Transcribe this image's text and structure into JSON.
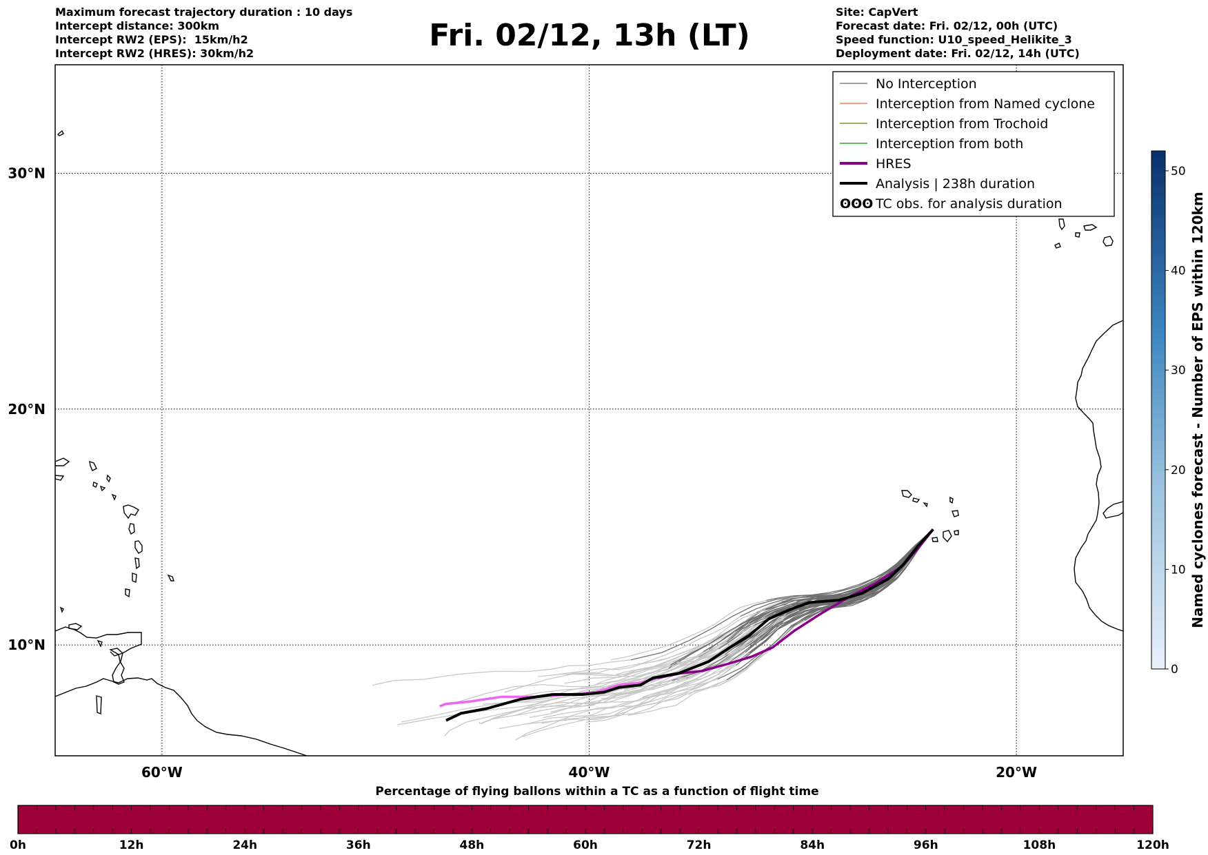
{
  "header": {
    "left": [
      "Maximum forecast trajectory duration : 10 days",
      "Intercept distance: 300km",
      "Intercept RW2 (EPS):  15km/h2",
      "Intercept RW2 (HRES): 30km/h2"
    ],
    "right": [
      "Site: CapVert",
      "Forecast date: Fri. 02/12, 00h (UTC)",
      "Speed function: U10_speed_Helikite_3",
      "Deployment date: Fri. 02/12, 14h (UTC)"
    ],
    "title": "Fri. 02/12, 13h (LT)"
  },
  "map": {
    "lon_range": [
      -65,
      -15
    ],
    "lat_range": [
      5.3,
      34.6
    ],
    "lon_ticks": [
      {
        "value": -60,
        "label": "60°W"
      },
      {
        "value": -40,
        "label": "40°W"
      },
      {
        "value": -20,
        "label": "20°W"
      }
    ],
    "lat_ticks": [
      {
        "value": 30,
        "label": "30°N"
      },
      {
        "value": 20,
        "label": "20°N"
      },
      {
        "value": 10,
        "label": "10°N"
      }
    ],
    "grid": true,
    "launch_site": {
      "lon": -23.9,
      "lat": 14.9
    }
  },
  "legend": {
    "position": "top-right",
    "items": [
      {
        "label": "No Interception",
        "color": "#7f7f7f",
        "style": "thin-line"
      },
      {
        "label": "Interception from Named cyclone",
        "color": "#ff7f50",
        "style": "thin-line"
      },
      {
        "label": "Interception from Trochoid",
        "color": "#8b8b2e",
        "style": "thin-line"
      },
      {
        "label": "Interception from both",
        "color": "#2ca02c",
        "style": "thin-line"
      },
      {
        "label": "HRES",
        "color": "#8b008b",
        "style": "thick-line"
      },
      {
        "label": "Analysis | 238h duration",
        "color": "#000000",
        "style": "thick-line"
      },
      {
        "label": "TC obs. for analysis duration",
        "color": "#000000",
        "style": "cyclone-symbols"
      }
    ]
  },
  "tracks": {
    "analysis": [
      [
        -23.9,
        14.9
      ],
      [
        -24.6,
        14.2
      ],
      [
        -25.3,
        13.4
      ],
      [
        -26.0,
        12.8
      ],
      [
        -27.2,
        12.2
      ],
      [
        -28.3,
        11.9
      ],
      [
        -29.7,
        11.8
      ],
      [
        -30.6,
        11.5
      ],
      [
        -31.6,
        11.1
      ],
      [
        -32.5,
        10.4
      ],
      [
        -33.4,
        9.9
      ],
      [
        -34.4,
        9.3
      ],
      [
        -35.8,
        8.8
      ],
      [
        -37.0,
        8.6
      ],
      [
        -37.6,
        8.3
      ],
      [
        -38.6,
        8.2
      ],
      [
        -39.3,
        8.0
      ],
      [
        -40.3,
        7.9
      ],
      [
        -41.7,
        7.9
      ],
      [
        -43.2,
        7.7
      ],
      [
        -44.8,
        7.3
      ],
      [
        -46.0,
        7.1
      ],
      [
        -46.7,
        6.8
      ]
    ],
    "hres": [
      [
        -23.9,
        14.9
      ],
      [
        -24.6,
        14.1
      ],
      [
        -25.4,
        13.3
      ],
      [
        -26.6,
        12.6
      ],
      [
        -27.9,
        12.0
      ],
      [
        -29.2,
        11.3
      ],
      [
        -30.4,
        10.6
      ],
      [
        -31.4,
        9.9
      ],
      [
        -32.4,
        9.5
      ],
      [
        -33.5,
        9.2
      ],
      [
        -34.7,
        8.9
      ],
      [
        -35.7,
        8.8
      ],
      [
        -36.8,
        8.6
      ],
      [
        -37.6,
        8.4
      ],
      [
        -38.6,
        8.3
      ],
      [
        -39.7,
        8.0
      ],
      [
        -41.0,
        7.9
      ],
      [
        -42.6,
        7.8
      ],
      [
        -44.1,
        7.8
      ],
      [
        -45.6,
        7.6
      ],
      [
        -46.7,
        7.5
      ],
      [
        -47.0,
        7.4
      ]
    ],
    "ensemble_count": 50
  },
  "colorbar_right": {
    "label": "Named cyclones forecast - Number of EPS within 120km",
    "range": [
      0,
      52
    ],
    "ticks": [
      "0",
      "10",
      "20",
      "30",
      "40",
      "50"
    ],
    "color_low": "#e8f1fa",
    "color_high": "#08306b"
  },
  "colorbar_bottom": {
    "title": "Percentage of flying ballons within a TC as a function of flight time",
    "ticks": [
      "0h",
      "12h",
      "24h",
      "36h",
      "48h",
      "60h",
      "72h",
      "84h",
      "96h",
      "108h",
      "120h"
    ],
    "fill_color": "#9e003a"
  }
}
